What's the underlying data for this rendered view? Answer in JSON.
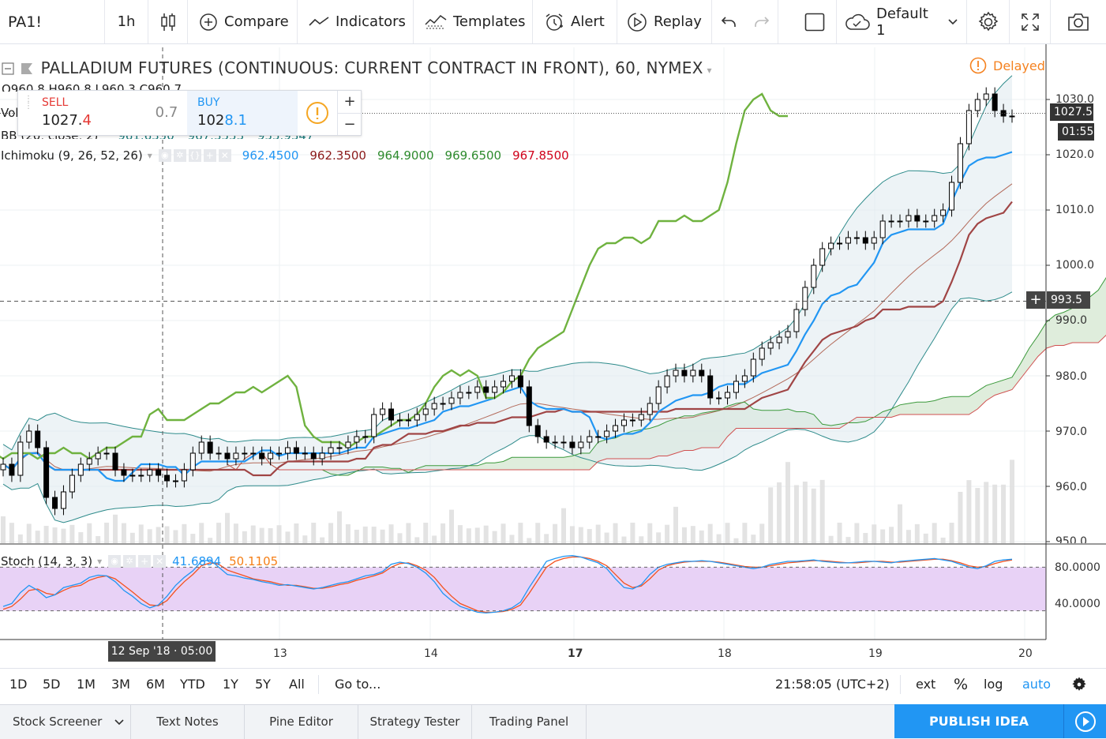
{
  "toolbar": {
    "symbol": "PA1!",
    "interval": "1h",
    "compare": "Compare",
    "indicators": "Indicators",
    "templates": "Templates",
    "alert": "Alert",
    "replay": "Replay",
    "layout_name": "Default 1"
  },
  "legend": {
    "title": "PALLADIUM FUTURES (CONTINUOUS: CURRENT CONTRACT IN FRONT), 60, NYMEX",
    "delayed": "Delayed",
    "ohlc_partial": "O960.8  H960.8  L960.3  C960.7",
    "vol_partial": "Vol",
    "bb_label": "BB (20, close, 2)",
    "bb_values": [
      "961.6350",
      "967.3553",
      "955.9347"
    ],
    "ichimoku_label": "Ichimoku (9, 26, 52, 26)",
    "ichimoku_values": [
      "962.4500",
      "962.3500",
      "964.9000",
      "969.6500",
      "967.8500"
    ],
    "ichimoku_colors": [
      "#2196f3",
      "#8b1a1a",
      "#2e8b2e",
      "#2e8b2e",
      "#d0021b"
    ],
    "stoch_label": "Stoch (14, 3, 3)",
    "stoch_values": [
      "41.6894",
      "50.1105"
    ],
    "stoch_colors": [
      "#2196f3",
      "#f57f17"
    ]
  },
  "trade": {
    "sell_label": "SELL",
    "sell_price": "1027.4",
    "sell_price_main": "1027.",
    "sell_price_last": "4",
    "spread": "0.7",
    "buy_label": "BUY",
    "buy_price": "1028.1",
    "buy_price_main": "102",
    "buy_price_last": "8.1",
    "plus": "+",
    "minus": "−"
  },
  "price_axis": {
    "ticks": [
      "1030.0",
      "1020.0",
      "1010.0",
      "1000.0",
      "990.0",
      "980.0",
      "970.0",
      "960.0",
      "950.0"
    ],
    "last_price": "1027.5",
    "countdown": "01:55",
    "crosshair_price": "993.5"
  },
  "stoch_axis": {
    "ticks": [
      "80.0000",
      "40.0000"
    ]
  },
  "time_axis": {
    "labels": [
      "13",
      "14",
      "17",
      "18",
      "19",
      "20"
    ],
    "crosshair_time": "12 Sep '18 · 05:00"
  },
  "range_bar": {
    "ranges": [
      "1D",
      "5D",
      "1M",
      "3M",
      "6M",
      "YTD",
      "1Y",
      "5Y",
      "All"
    ],
    "goto": "Go to...",
    "clock": "21:58:05 (UTC+2)",
    "ext": "ext",
    "percent": "%",
    "log": "log",
    "auto": "auto"
  },
  "bottom_tabs": {
    "items": [
      "Stock Screener",
      "Text Notes",
      "Pine Editor",
      "Strategy Tester",
      "Trading Panel"
    ],
    "publish": "PUBLISH IDEA"
  },
  "chart_data": {
    "type": "candlestick",
    "price_range": [
      950,
      1032
    ],
    "stoch_range": [
      0,
      100
    ],
    "stoch_levels": [
      80,
      20
    ],
    "time_labels": [
      "13",
      "14",
      "17",
      "18",
      "19",
      "20"
    ],
    "colors": {
      "up": "#ffffff",
      "down": "#000000",
      "tenkan": "#2196f3",
      "kijun": "#a04545",
      "chikou": "#6fb23f",
      "span_a": "#3c9a3c",
      "span_b": "#d05050",
      "bb": "#2e8b8b",
      "stoch_k": "#2196f3",
      "stoch_d": "#f4511e",
      "stoch_band": "#e0c8f4"
    },
    "close": [
      964,
      962,
      968,
      970,
      967,
      958,
      956,
      959,
      962,
      964,
      965,
      966,
      966,
      963,
      962,
      962,
      962,
      963,
      962,
      961,
      961,
      963,
      966,
      968,
      966,
      966,
      965,
      966,
      966,
      966,
      965,
      966,
      966,
      967,
      966,
      966,
      965,
      966,
      967,
      967,
      968,
      969,
      969,
      973,
      974,
      972,
      972,
      972,
      973,
      974,
      975,
      975,
      976,
      977,
      977,
      978,
      977,
      978,
      979,
      980,
      978,
      971,
      969,
      968,
      968,
      968,
      967,
      968,
      969,
      969,
      970,
      971,
      972,
      972,
      973,
      975,
      978,
      980,
      981,
      980,
      981,
      980,
      976,
      976,
      977,
      979,
      980,
      983,
      985,
      986,
      987,
      988,
      992,
      996,
      1000,
      1003,
      1004,
      1004,
      1005,
      1005,
      1004,
      1005,
      1008,
      1008,
      1008,
      1009,
      1008,
      1008,
      1009,
      1010,
      1015,
      1022,
      1028,
      1030,
      1031,
      1028,
      1027,
      1027
    ],
    "stoch_k": [
      26,
      30,
      45,
      55,
      48,
      38,
      42,
      52,
      55,
      58,
      66,
      69,
      68,
      60,
      48,
      40,
      30,
      24,
      28,
      40,
      55,
      66,
      75,
      88,
      90,
      80,
      70,
      68,
      65,
      63,
      60,
      58,
      55,
      56,
      54,
      52,
      50,
      52,
      55,
      58,
      60,
      64,
      68,
      70,
      74,
      84,
      87,
      85,
      80,
      72,
      60,
      44,
      34,
      26,
      22,
      18,
      17,
      18,
      20,
      24,
      32,
      52,
      70,
      88,
      92,
      95,
      96,
      94,
      90,
      86,
      78,
      64,
      52,
      50,
      56,
      70,
      80,
      84,
      86,
      88,
      88,
      89,
      88,
      86,
      84,
      82,
      80,
      78,
      80,
      84,
      86,
      88,
      88,
      89,
      90,
      88,
      87,
      86,
      86,
      87,
      88,
      88,
      87,
      86,
      88,
      89,
      90,
      91,
      92,
      90,
      88,
      84,
      80,
      78,
      82,
      88,
      90,
      91
    ],
    "stoch_d": [
      22,
      26,
      36,
      48,
      50,
      44,
      42,
      48,
      53,
      55,
      62,
      66,
      68,
      64,
      55,
      46,
      36,
      28,
      27,
      34,
      48,
      60,
      70,
      82,
      86,
      84,
      76,
      72,
      68,
      64,
      62,
      60,
      57,
      55,
      55,
      53,
      51,
      51,
      53,
      56,
      58,
      62,
      65,
      68,
      72,
      80,
      85,
      86,
      82,
      76,
      66,
      52,
      40,
      30,
      25,
      20,
      18,
      18,
      19,
      22,
      28,
      44,
      62,
      80,
      88,
      92,
      94,
      94,
      92,
      88,
      82,
      70,
      58,
      52,
      54,
      64,
      76,
      82,
      85,
      87,
      88,
      88,
      88,
      87,
      85,
      83,
      81,
      80,
      80,
      82,
      84,
      86,
      87,
      88,
      89,
      89,
      88,
      87,
      86,
      86,
      87,
      88,
      88,
      87,
      87,
      88,
      89,
      90,
      91,
      91,
      89,
      86,
      82,
      80,
      81,
      85,
      88,
      90
    ]
  }
}
